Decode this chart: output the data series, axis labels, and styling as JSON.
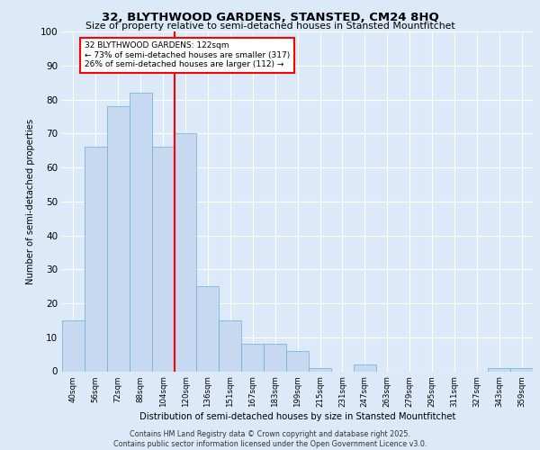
{
  "title1": "32, BLYTHWOOD GARDENS, STANSTED, CM24 8HQ",
  "title2": "Size of property relative to semi-detached houses in Stansted Mountfitchet",
  "xlabel": "Distribution of semi-detached houses by size in Stansted Mountfitchet",
  "ylabel": "Number of semi-detached properties",
  "categories": [
    "40sqm",
    "56sqm",
    "72sqm",
    "88sqm",
    "104sqm",
    "120sqm",
    "136sqm",
    "151sqm",
    "167sqm",
    "183sqm",
    "199sqm",
    "215sqm",
    "231sqm",
    "247sqm",
    "263sqm",
    "279sqm",
    "295sqm",
    "311sqm",
    "327sqm",
    "343sqm",
    "359sqm"
  ],
  "values": [
    15,
    66,
    78,
    82,
    66,
    70,
    25,
    15,
    8,
    8,
    6,
    1,
    0,
    2,
    0,
    0,
    0,
    0,
    0,
    1,
    1
  ],
  "bar_color": "#c6d9f1",
  "bar_edge_color": "#6baed6",
  "red_line_index": 4.5,
  "annotation_label": "32 BLYTHWOOD GARDENS: 122sqm",
  "annotation_line1": "← 73% of semi-detached houses are smaller (317)",
  "annotation_line2": "26% of semi-detached houses are larger (112) →",
  "ylim": [
    0,
    100
  ],
  "footer1": "Contains HM Land Registry data © Crown copyright and database right 2025.",
  "footer2": "Contains public sector information licensed under the Open Government Licence v3.0.",
  "bg_color": "#dce9f8",
  "fig_color": "#dce9f8"
}
